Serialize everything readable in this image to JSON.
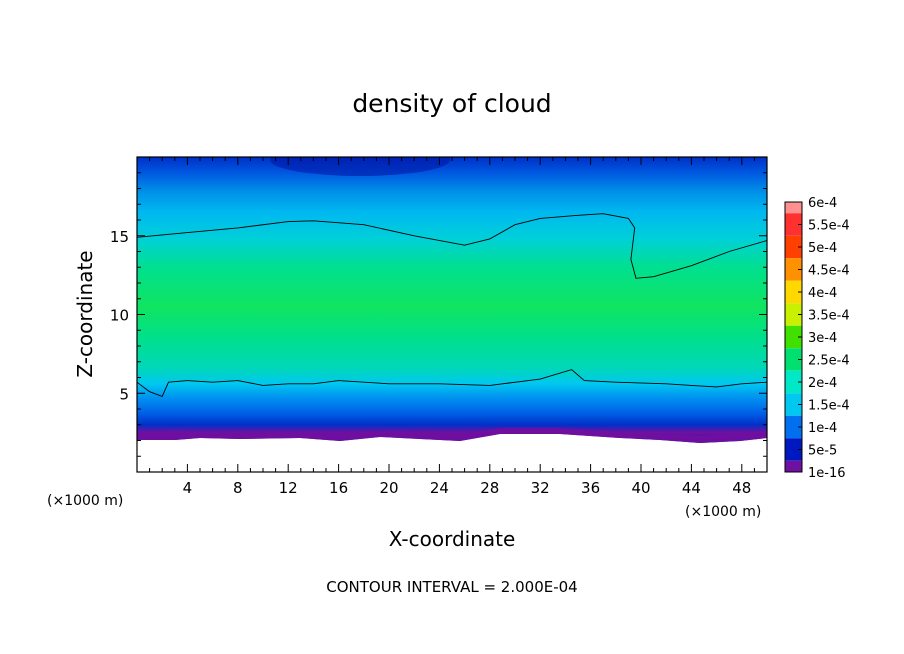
{
  "chart_data": {
    "type": "heatmap",
    "title": "density of cloud",
    "xlabel": "X-coordinate",
    "ylabel": "Z-coordinate",
    "x_units": "(×1000 m)",
    "y_units": "(×1000 m)",
    "xlim": [
      0,
      50
    ],
    "ylim": [
      0,
      20
    ],
    "x_ticks": [
      4,
      8,
      12,
      16,
      20,
      24,
      28,
      32,
      36,
      40,
      44,
      48
    ],
    "y_ticks": [
      5,
      10,
      15
    ],
    "contour_interval_text": "CONTOUR INTERVAL = 2.000E-04",
    "colorbar": {
      "labels": [
        "6e-4",
        "5.5e-4",
        "5e-4",
        "4.5e-4",
        "4e-4",
        "3.5e-4",
        "3e-4",
        "2.5e-4",
        "2e-4",
        "1.5e-4",
        "1e-4",
        "5e-5",
        "1e-16"
      ],
      "colors": [
        "#ff9090",
        "#ff3030",
        "#ff4000",
        "#ff9000",
        "#ffd800",
        "#c8f000",
        "#40e000",
        "#00e070",
        "#00e8c8",
        "#00c8f0",
        "#0070f0",
        "#0018c0",
        "#7010a0"
      ]
    },
    "contours": [
      {
        "level": 0.0002,
        "points": [
          [
            0,
            14.9
          ],
          [
            4,
            15.2
          ],
          [
            8,
            15.5
          ],
          [
            12,
            15.9
          ],
          [
            14,
            15.95
          ],
          [
            18,
            15.7
          ],
          [
            22,
            15.0
          ],
          [
            26,
            14.4
          ],
          [
            28,
            14.8
          ],
          [
            30,
            15.7
          ],
          [
            32,
            16.1
          ],
          [
            35,
            16.3
          ],
          [
            37,
            16.4
          ],
          [
            39,
            16.1
          ],
          [
            39.5,
            15.5
          ],
          [
            39.2,
            13.5
          ],
          [
            39.6,
            12.3
          ],
          [
            41,
            12.4
          ],
          [
            44,
            13.1
          ],
          [
            47,
            14.0
          ],
          [
            50,
            14.7
          ]
        ]
      },
      {
        "level": 0.0002,
        "points": [
          [
            0,
            5.7
          ],
          [
            1,
            5.1
          ],
          [
            2,
            4.8
          ],
          [
            2.5,
            5.7
          ],
          [
            4,
            5.8
          ],
          [
            6,
            5.7
          ],
          [
            8,
            5.8
          ],
          [
            10,
            5.5
          ],
          [
            12,
            5.6
          ],
          [
            14,
            5.6
          ],
          [
            16,
            5.8
          ],
          [
            20,
            5.6
          ],
          [
            24,
            5.6
          ],
          [
            28,
            5.5
          ],
          [
            32,
            5.9
          ],
          [
            34.5,
            6.5
          ],
          [
            35.5,
            5.8
          ],
          [
            38,
            5.7
          ],
          [
            42,
            5.6
          ],
          [
            44,
            5.5
          ],
          [
            46,
            5.4
          ],
          [
            48,
            5.6
          ],
          [
            50,
            5.7
          ]
        ]
      }
    ],
    "field": {
      "band_color_values": [
        [
          0,
          "#0018c0"
        ],
        [
          1.9,
          "#3a0fa6"
        ],
        [
          2.5,
          "#7010a0"
        ],
        [
          3.0,
          "#0030c8"
        ],
        [
          3.8,
          "#0064e8"
        ],
        [
          4.8,
          "#0096f0"
        ],
        [
          5.6,
          "#00c8f0"
        ],
        [
          6.6,
          "#00d8b8"
        ],
        [
          8.5,
          "#00e08c"
        ],
        [
          10.5,
          "#10e460"
        ],
        [
          13.0,
          "#00e090"
        ],
        [
          14.8,
          "#00d0d8"
        ],
        [
          16.5,
          "#00b8f0"
        ],
        [
          17.8,
          "#0090e8"
        ],
        [
          19.0,
          "#0058e0"
        ],
        [
          20,
          "#0030c8"
        ]
      ]
    }
  }
}
